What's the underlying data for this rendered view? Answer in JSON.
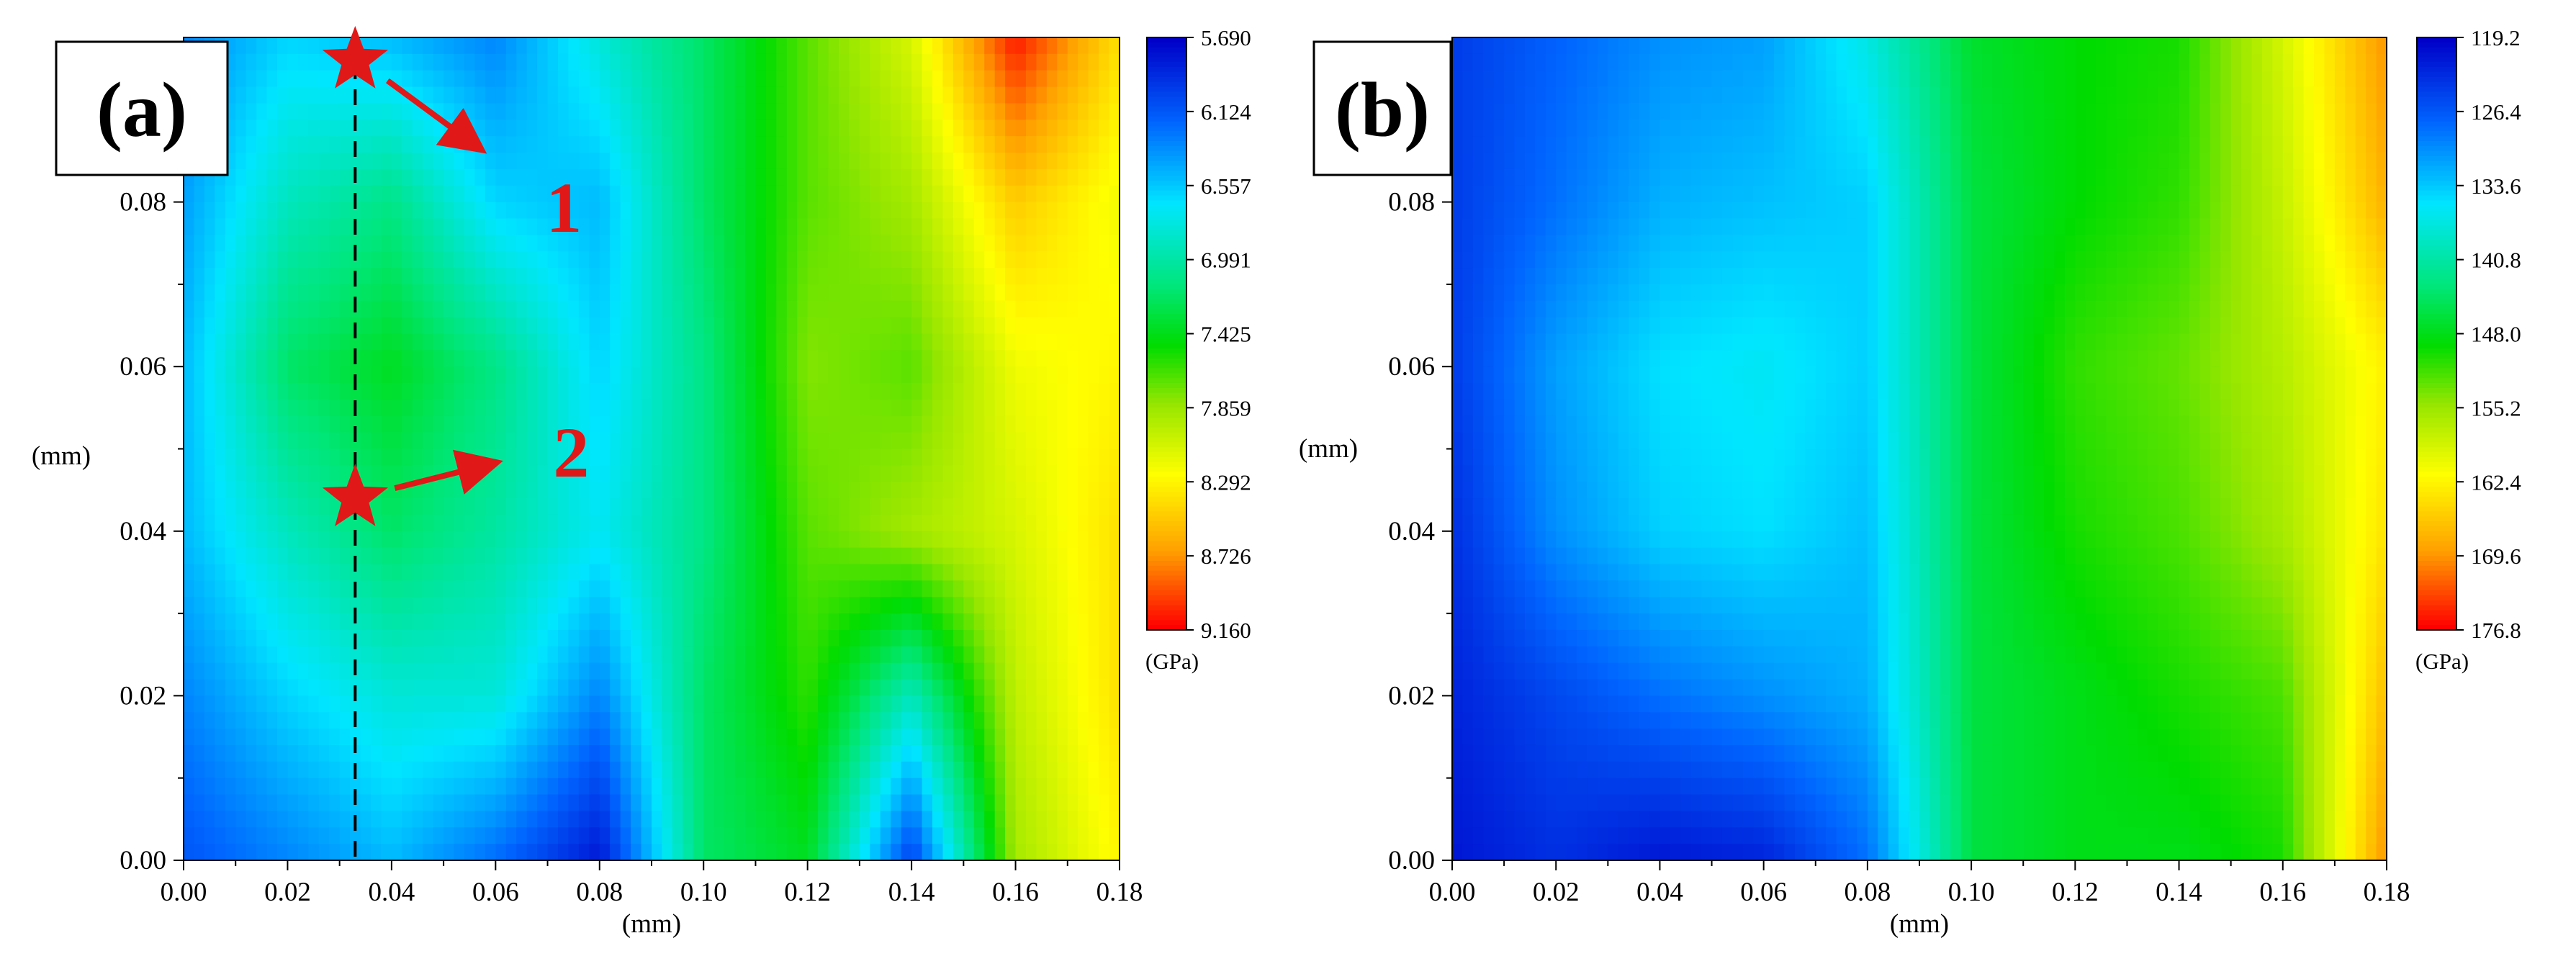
{
  "chart_data": [
    {
      "type": "heatmap",
      "panel_label": "(a)",
      "xlabel": "(mm)",
      "ylabel": "(mm)",
      "xlim": [
        0,
        0.18
      ],
      "ylim": [
        0,
        0.1
      ],
      "x_ticks": [
        "0.00",
        "0.02",
        "0.04",
        "0.06",
        "0.08",
        "0.10",
        "0.12",
        "0.14",
        "0.16",
        "0.18"
      ],
      "y_ticks": [
        "0.00",
        "0.02",
        "0.04",
        "0.06",
        "0.08"
      ],
      "colorbar": {
        "unit": "(GPa)",
        "labels": [
          "5.690",
          "6.124",
          "6.557",
          "6.991",
          "7.425",
          "7.859",
          "8.292",
          "8.726",
          "9.160"
        ],
        "min": 5.69,
        "max": 9.16
      },
      "annotations": [
        {
          "label": "1",
          "marker": "star",
          "x": 0.033,
          "y": 0.1
        },
        {
          "label": "2",
          "marker": "star",
          "x": 0.033,
          "y": 0.044
        }
      ],
      "dashed_line_x": 0.033,
      "x": [
        0.0,
        0.02,
        0.04,
        0.06,
        0.08,
        0.1,
        0.12,
        0.14,
        0.16,
        0.18
      ],
      "y": [
        0.0,
        0.02,
        0.04,
        0.06,
        0.08,
        0.1
      ],
      "z": [
        [
          6.1,
          6.3,
          6.5,
          6.2,
          5.8,
          7.2,
          7.4,
          6.0,
          7.9,
          8.3
        ],
        [
          6.3,
          6.6,
          6.8,
          6.8,
          6.3,
          7.2,
          7.6,
          6.9,
          8.0,
          8.4
        ],
        [
          6.5,
          6.9,
          7.2,
          7.0,
          6.7,
          7.1,
          7.7,
          7.9,
          8.1,
          8.4
        ],
        [
          6.5,
          7.2,
          7.4,
          7.1,
          6.6,
          7.1,
          7.8,
          7.7,
          8.2,
          8.3
        ],
        [
          6.4,
          6.9,
          7.1,
          6.6,
          6.5,
          7.2,
          7.7,
          7.9,
          8.5,
          8.2
        ],
        [
          6.3,
          6.6,
          6.5,
          6.3,
          6.8,
          7.2,
          7.7,
          8.1,
          9.1,
          8.4
        ]
      ]
    },
    {
      "type": "heatmap",
      "panel_label": "(b)",
      "xlabel": "(mm)",
      "ylabel": "(mm)",
      "xlim": [
        0,
        0.18
      ],
      "ylim": [
        0,
        0.1
      ],
      "x_ticks": [
        "0.00",
        "0.02",
        "0.04",
        "0.06",
        "0.08",
        "0.10",
        "0.12",
        "0.14",
        "0.16",
        "0.18"
      ],
      "y_ticks": [
        "0.00",
        "0.02",
        "0.04",
        "0.06",
        "0.08"
      ],
      "colorbar": {
        "unit": "(GPa)",
        "labels": [
          "119.2",
          "126.4",
          "133.6",
          "140.8",
          "148.0",
          "155.2",
          "162.4",
          "169.6",
          "176.8"
        ],
        "min": 119.2,
        "max": 176.8
      },
      "x": [
        0.0,
        0.02,
        0.04,
        0.06,
        0.08,
        0.1,
        0.12,
        0.14,
        0.16,
        0.18
      ],
      "y": [
        0.0,
        0.02,
        0.04,
        0.06,
        0.08,
        0.1
      ],
      "z": [
        [
          121,
          123,
          121,
          122,
          128,
          146,
          148,
          148,
          150,
          170
        ],
        [
          122,
          125,
          128,
          130,
          132,
          146,
          148,
          150,
          152,
          167
        ],
        [
          123,
          130,
          134,
          135,
          133,
          146,
          150,
          152,
          156,
          164
        ],
        [
          124,
          131,
          135,
          136,
          134,
          146,
          151,
          153,
          157,
          163
        ],
        [
          124,
          128,
          132,
          133,
          134,
          146,
          149,
          151,
          158,
          168
        ],
        [
          124,
          127,
          130,
          131,
          137,
          147,
          149,
          150,
          159,
          170
        ]
      ]
    }
  ]
}
